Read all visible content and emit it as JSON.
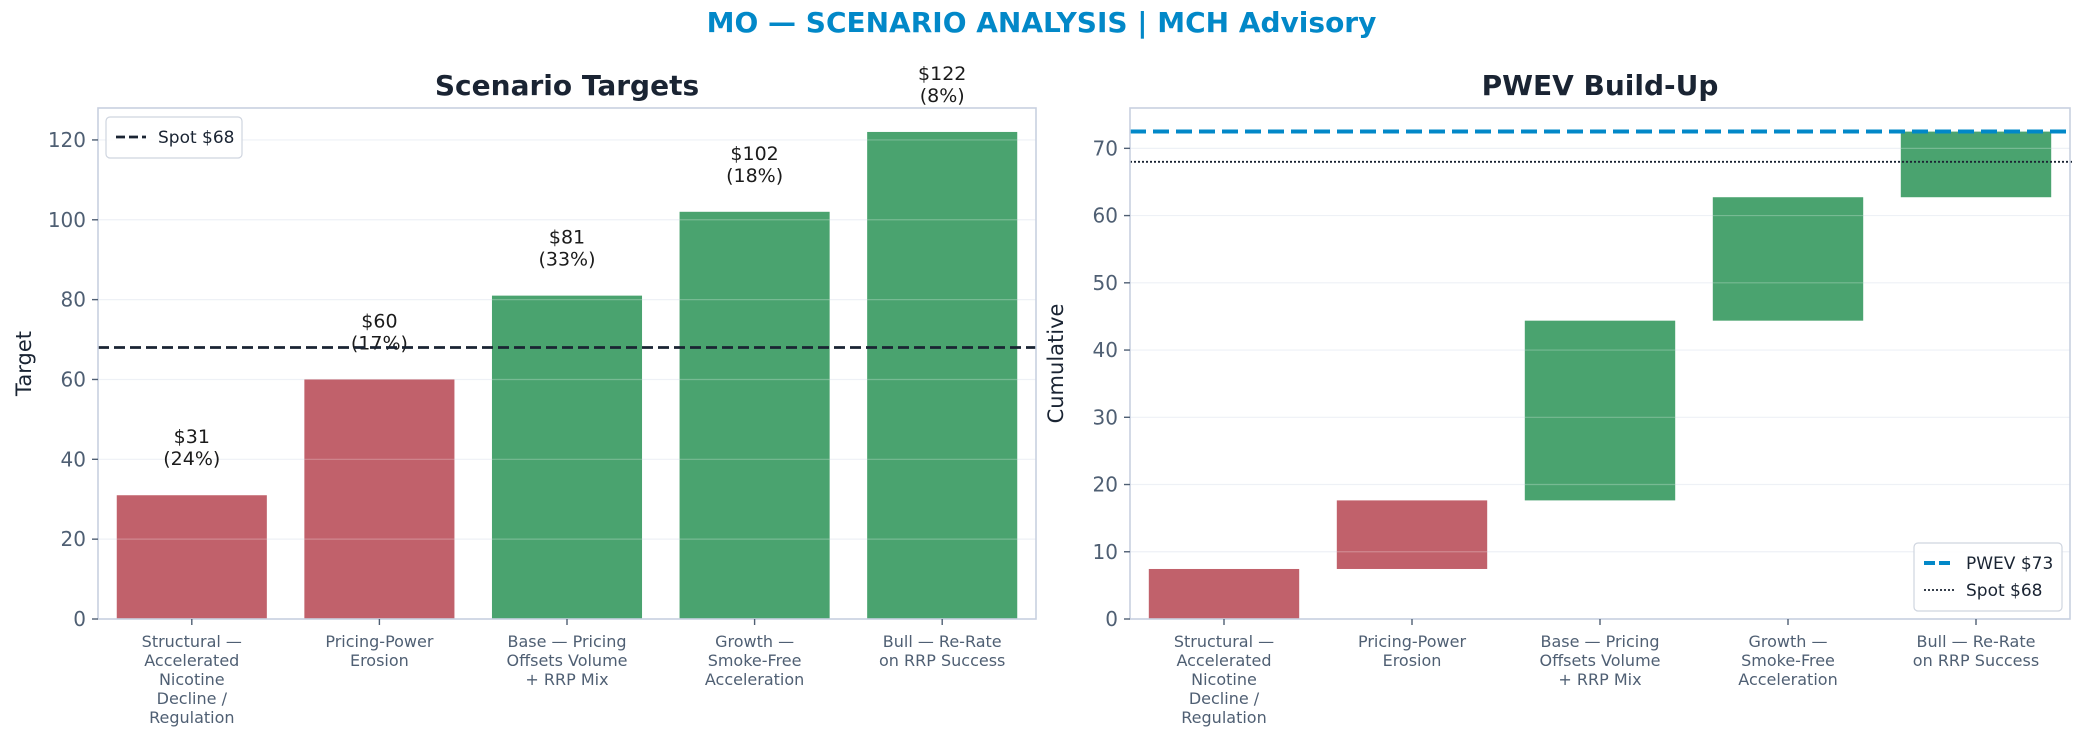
{
  "suptitle": "MO — SCENARIO ANALYSIS | MCH Advisory",
  "colors": {
    "accent": "#0288c8",
    "dark": "#1a2433",
    "red": "#c1616b",
    "green": "#4aa36f",
    "tick": "#4f5f73",
    "frame": "#c8d0e0",
    "grid": "#eef1f6"
  },
  "chart_data": [
    {
      "type": "bar",
      "title": "Scenario Targets",
      "xlabel": "",
      "ylabel": "Target",
      "ylim": [
        0,
        128
      ],
      "yticks": [
        0,
        20,
        40,
        60,
        80,
        100,
        120
      ],
      "categories": [
        [
          "Structural —",
          "Accelerated",
          "Nicotine",
          "Decline /",
          "Regulation"
        ],
        [
          "Pricing-Power",
          "Erosion"
        ],
        [
          "Base — Pricing",
          "Offsets Volume",
          "+ RRP Mix"
        ],
        [
          "Growth —",
          "Smoke-Free",
          "Acceleration"
        ],
        [
          "Bull — Re-Rate",
          "on RRP Success"
        ]
      ],
      "values": [
        31,
        60,
        81,
        102,
        122
      ],
      "bar_colors": [
        "red",
        "red",
        "green",
        "green",
        "green"
      ],
      "bar_labels": [
        [
          "$31",
          "(24%)"
        ],
        [
          "$60",
          "(17%)"
        ],
        [
          "$81",
          "(33%)"
        ],
        [
          "$102",
          "(18%)"
        ],
        [
          "$122",
          "(8%)"
        ]
      ],
      "reference_lines": [
        {
          "name": "Spot $68",
          "value": 68,
          "style": "dashed",
          "color": "dark"
        }
      ],
      "legend": {
        "position": "top-left",
        "entries": [
          "Spot $68"
        ]
      },
      "grid": true
    },
    {
      "type": "waterfall",
      "title": "PWEV Build-Up",
      "xlabel": "",
      "ylabel": "Cumulative",
      "ylim": [
        0,
        76
      ],
      "yticks": [
        0,
        10,
        20,
        30,
        40,
        50,
        60,
        70
      ],
      "categories": [
        [
          "Structural —",
          "Accelerated",
          "Nicotine",
          "Decline /",
          "Regulation"
        ],
        [
          "Pricing-Power",
          "Erosion"
        ],
        [
          "Base — Pricing",
          "Offsets Volume",
          "+ RRP Mix"
        ],
        [
          "Growth —",
          "Smoke-Free",
          "Acceleration"
        ],
        [
          "Bull — Re-Rate",
          "on RRP Success"
        ]
      ],
      "segments": [
        {
          "start": 0,
          "end": 7.44
        },
        {
          "start": 7.44,
          "end": 17.64
        },
        {
          "start": 17.64,
          "end": 44.37
        },
        {
          "start": 44.37,
          "end": 62.73
        },
        {
          "start": 62.73,
          "end": 72.49
        }
      ],
      "bar_colors": [
        "red",
        "red",
        "green",
        "green",
        "green"
      ],
      "reference_lines": [
        {
          "name": "PWEV $73",
          "value": 72.5,
          "style": "dashed",
          "color": "accent"
        },
        {
          "name": "Spot $68",
          "value": 68,
          "style": "dotted",
          "color": "dark"
        }
      ],
      "legend": {
        "position": "bottom-right",
        "entries": [
          "PWEV $73",
          "Spot $68"
        ]
      },
      "grid": true
    }
  ]
}
